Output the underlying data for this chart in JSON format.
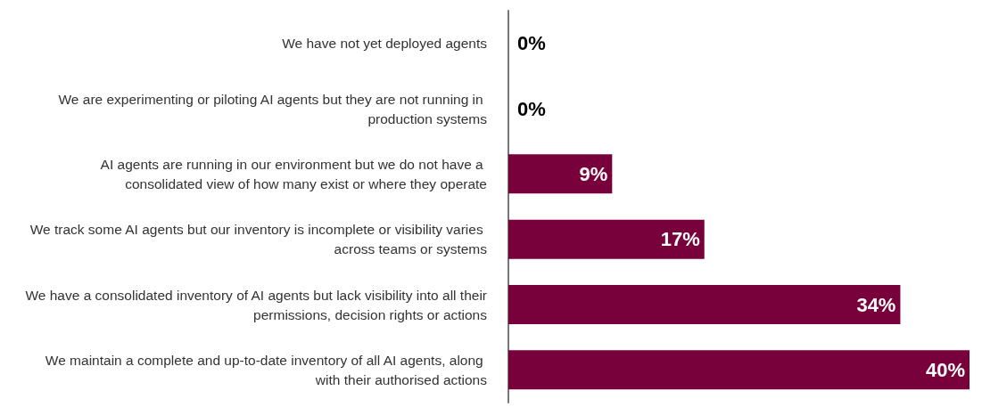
{
  "chart_data": {
    "type": "bar",
    "orientation": "horizontal",
    "value_labels": [
      "0%",
      "0%",
      "9%",
      "17%",
      "34%",
      "40%"
    ],
    "categories": [
      "We have not yet deployed agents",
      "We are experimenting or piloting AI agents but they are not running in production systems",
      "AI agents are running in our environment but we do not have a consolidated view of how many exist or where they operate",
      "We track some AI agents but our inventory is incomplete or visibility varies across teams or systems",
      "We have a consolidated inventory of AI agents but lack visibility into all their permissions, decision rights or actions",
      "We maintain a complete and up-to-date inventory of all AI agents, along with their authorised actions"
    ],
    "values": [
      0,
      0,
      9,
      17,
      34,
      40
    ],
    "color": "#78003b"
  }
}
